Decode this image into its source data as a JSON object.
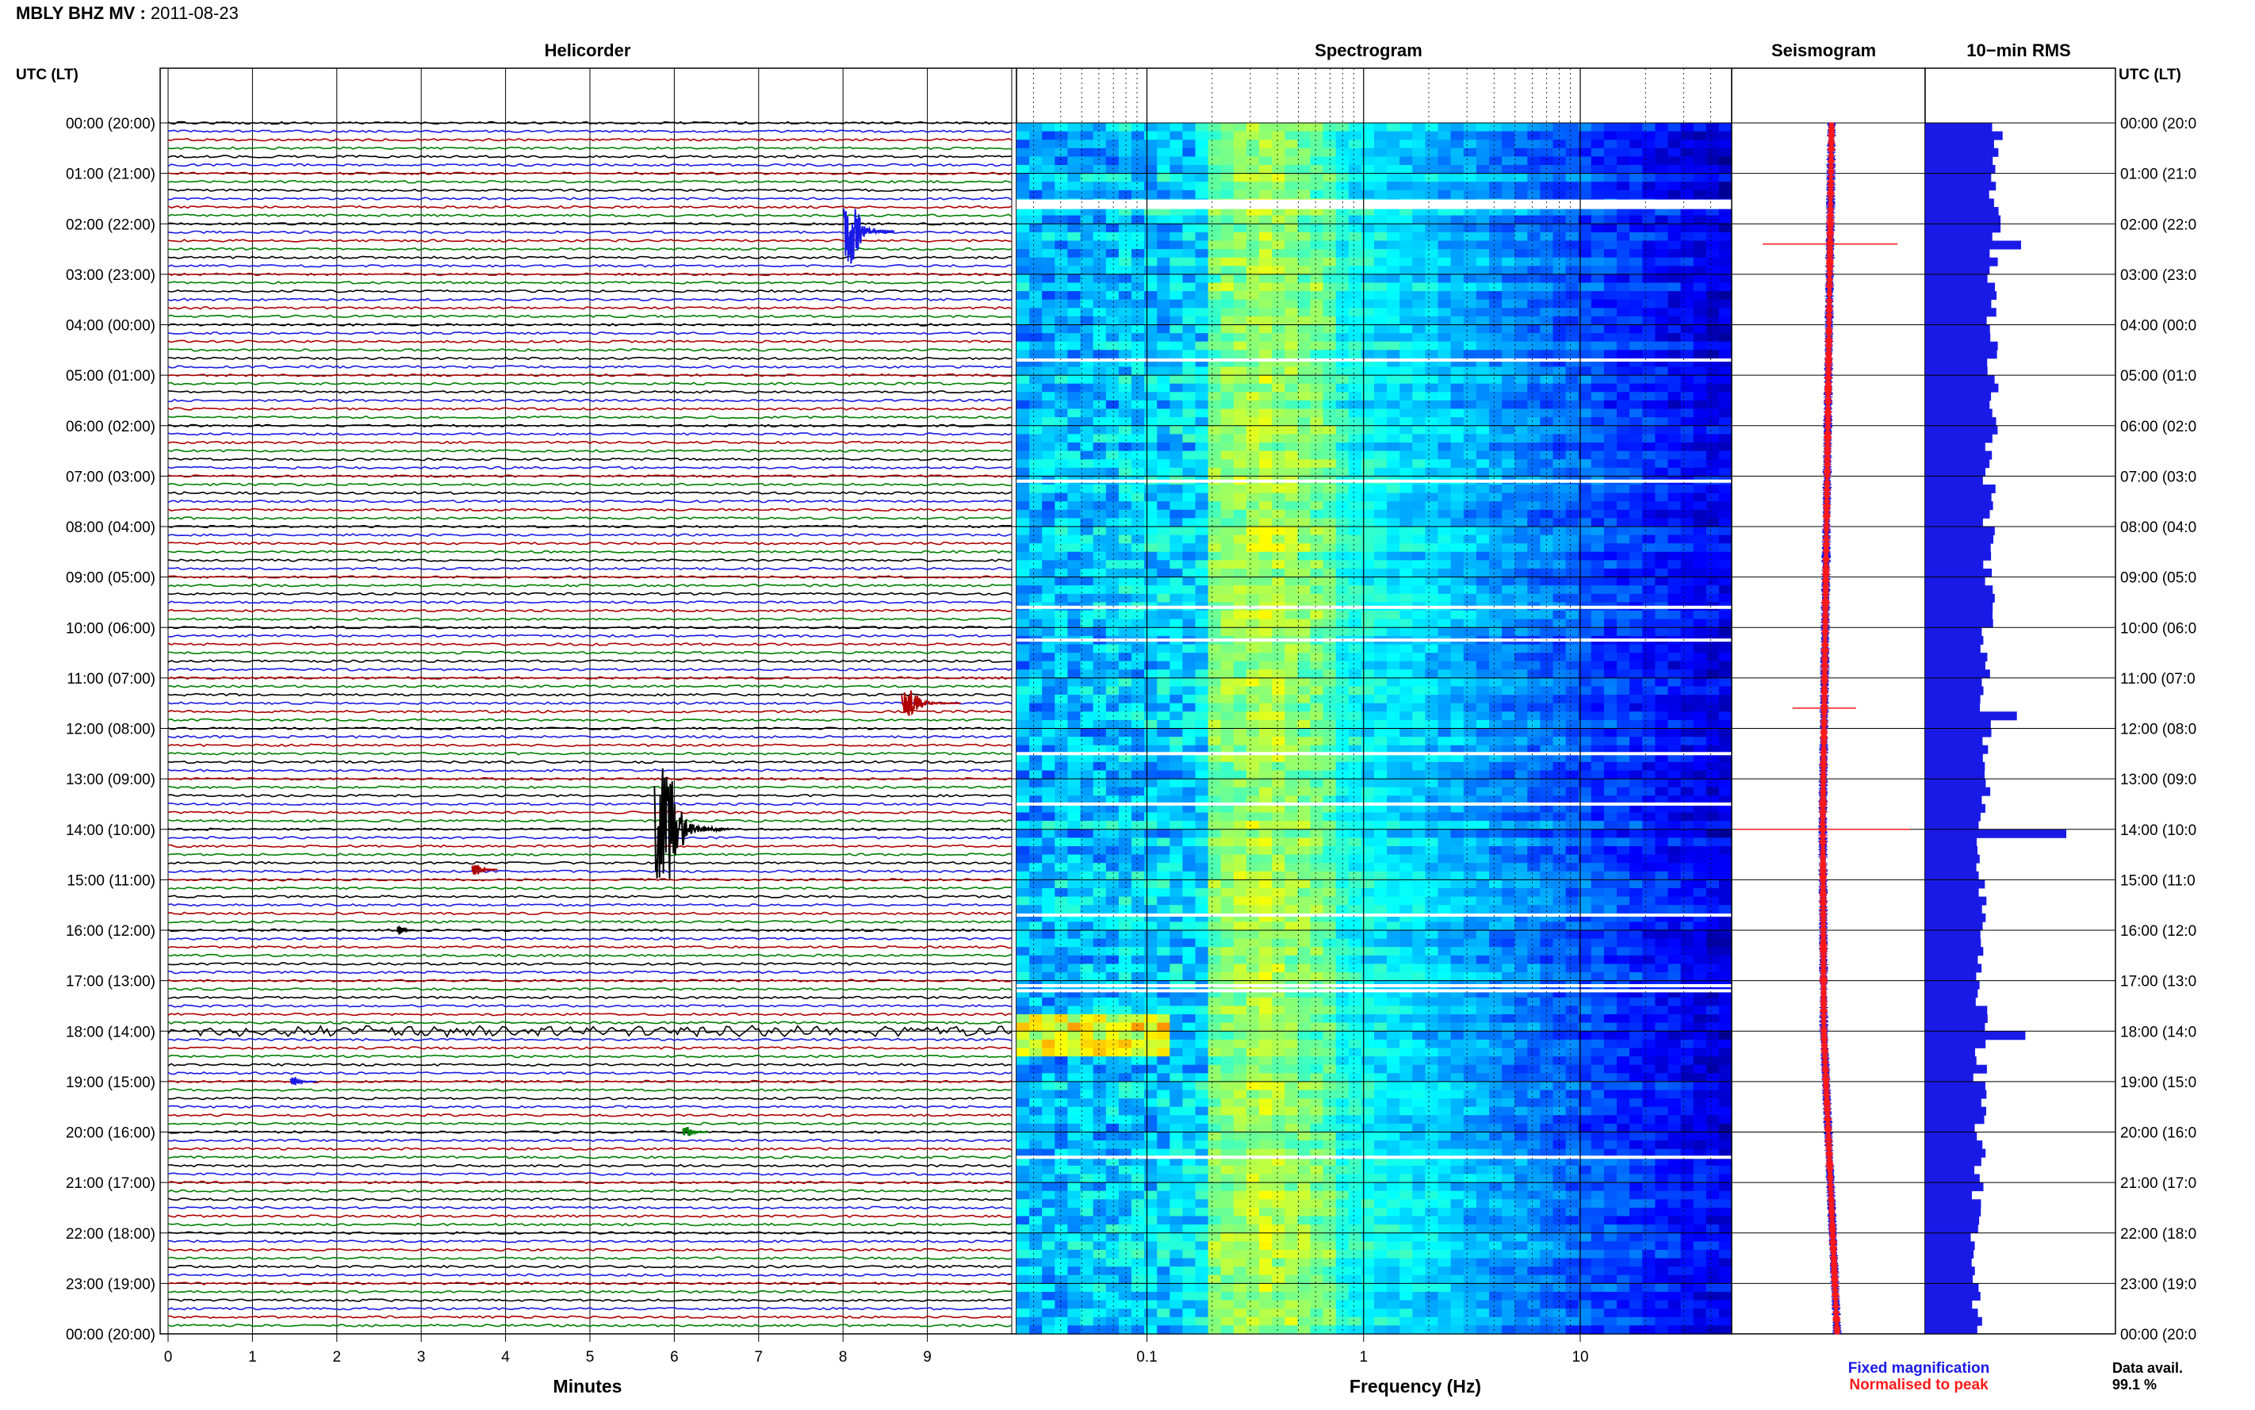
{
  "header": {
    "station": "MBLY BHZ MV",
    "date": "2011-08-23"
  },
  "panels": {
    "helicorder": "Helicorder",
    "spectrogram": "Spectrogram",
    "seismogram": "Seismogram",
    "rms": "10−min RMS"
  },
  "time_axis_title": "UTC (LT)",
  "time_labels": [
    "00:00 (20:00)",
    "01:00 (21:00)",
    "02:00 (22:00)",
    "03:00 (23:00)",
    "04:00 (00:00)",
    "05:00 (01:00)",
    "06:00 (02:00)",
    "07:00 (03:00)",
    "08:00 (04:00)",
    "09:00 (05:00)",
    "10:00 (06:00)",
    "11:00 (07:00)",
    "12:00 (08:00)",
    "13:00 (09:00)",
    "14:00 (10:00)",
    "15:00 (11:00)",
    "16:00 (12:00)",
    "17:00 (13:00)",
    "18:00 (14:00)",
    "19:00 (15:00)",
    "20:00 (16:00)",
    "21:00 (17:00)",
    "22:00 (18:00)",
    "23:00 (19:00)",
    "00:00 (20:00)"
  ],
  "right_time_labels": [
    "00:00 (20:0",
    "01:00 (21:0",
    "02:00 (22:0",
    "03:00 (23:0",
    "04:00 (00:0",
    "05:00 (01:0",
    "06:00 (02:0",
    "07:00 (03:0",
    "08:00 (04:0",
    "09:00 (05:0",
    "10:00 (06:0",
    "11:00 (07:0",
    "12:00 (08:0",
    "13:00 (09:0",
    "14:00 (10:0",
    "15:00 (11:0",
    "16:00 (12:0",
    "17:00 (13:0",
    "18:00 (14:0",
    "19:00 (15:0",
    "20:00 (16:0",
    "21:00 (17:0",
    "22:00 (18:0",
    "23:00 (19:0",
    "00:00 (20:0"
  ],
  "legend": {
    "fixed": "Fixed magnification",
    "normalised": "Normalised to peak",
    "fixed_color": "#1a1ae6",
    "normalised_color": "#ff1a1a"
  },
  "data_avail": {
    "label": "Data avail.",
    "value": "99.1 %"
  },
  "chart_data": [
    {
      "type": "line",
      "name": "helicorder",
      "xlabel": "Minutes",
      "x_ticks": [
        "0",
        "1",
        "2",
        "3",
        "4",
        "5",
        "6",
        "7",
        "8",
        "9"
      ],
      "xlim": [
        0,
        10
      ],
      "line_colors": [
        "#000000",
        "#1a1ae6",
        "#b00000",
        "#008000"
      ],
      "events": [
        {
          "hour": 2.15,
          "minute": 8.1,
          "amp": 0.9,
          "len": 0.6,
          "color": "#1a1ae6"
        },
        {
          "hour": 11.5,
          "minute": 8.8,
          "amp": 0.35,
          "len": 0.7,
          "color": "#b00000"
        },
        {
          "hour": 14.0,
          "minute": 5.9,
          "amp": 1.7,
          "len": 0.9,
          "color": "#000000"
        },
        {
          "hour": 14.8,
          "minute": 3.65,
          "amp": 0.15,
          "len": 0.3,
          "color": "#b00000"
        },
        {
          "hour": 16.0,
          "minute": 2.75,
          "amp": 0.12,
          "len": 0.2,
          "color": "#000000"
        },
        {
          "hour": 19.0,
          "minute": 1.5,
          "amp": 0.12,
          "len": 0.3,
          "color": "#1a1ae6"
        },
        {
          "hour": 20.0,
          "minute": 6.15,
          "amp": 0.15,
          "len": 0.3,
          "color": "#008000"
        }
      ]
    },
    {
      "type": "heatmap",
      "name": "spectrogram",
      "xlabel": "Frequency (Hz)",
      "x_scale": "log",
      "xlim": [
        0.025,
        50
      ],
      "x_ticks": [
        "0.1",
        "1",
        "10"
      ],
      "peak_band_hz": [
        0.2,
        0.6
      ],
      "gaps_hours": [
        1.55,
        4.7,
        7.1,
        9.6,
        10.25,
        12.5,
        13.5,
        15.7,
        17.1,
        17.2,
        20.5
      ]
    },
    {
      "type": "line",
      "name": "seismogram",
      "series": [
        {
          "name": "Fixed magnification",
          "color": "#1a1ae6"
        },
        {
          "name": "Normalised to peak",
          "color": "#ff1a1a"
        }
      ],
      "spikes_hours": [
        2.4,
        11.6,
        14.0
      ]
    },
    {
      "type": "bar",
      "name": "10-min RMS",
      "orientation": "horizontal",
      "hours_per_bar": 0.1667,
      "baseline": 50,
      "peaks": [
        {
          "hour": 2.4,
          "value": 68
        },
        {
          "hour": 11.6,
          "value": 65
        },
        {
          "hour": 14.0,
          "value": 100
        },
        {
          "hour": 18.0,
          "value": 71
        }
      ]
    }
  ]
}
